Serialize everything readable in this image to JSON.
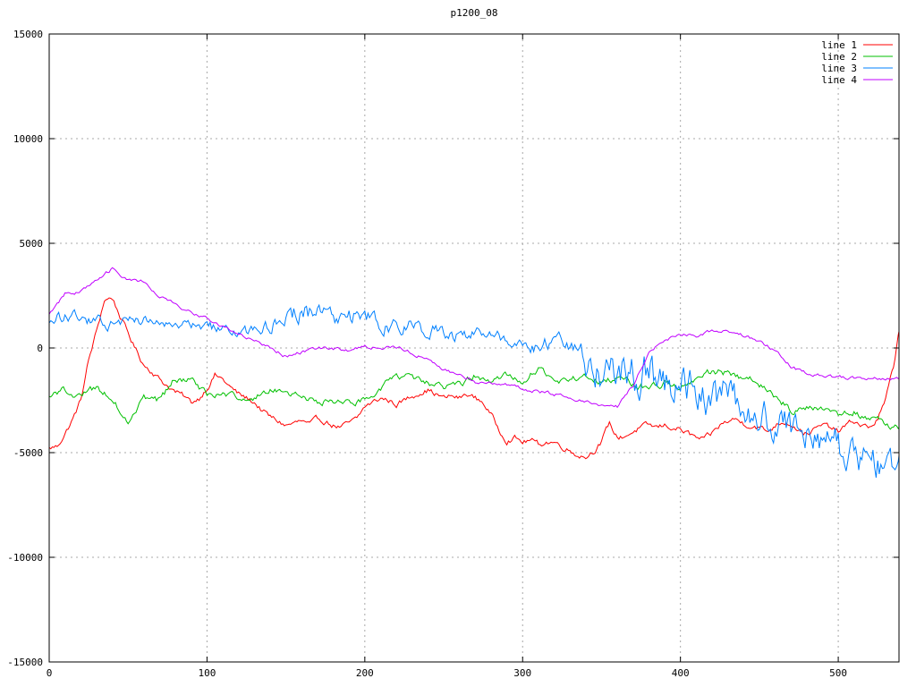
{
  "chart_data": {
    "type": "line",
    "title": "p1200_08",
    "xlabel": "",
    "ylabel": "",
    "xlim": [
      0,
      538.5
    ],
    "ylim": [
      -15000,
      15000
    ],
    "x_ticks": [
      0,
      100,
      200,
      300,
      400,
      500
    ],
    "y_ticks": [
      -15000,
      -10000,
      -5000,
      0,
      5000,
      10000,
      15000
    ],
    "grid": true,
    "grid_color": "#a8a8a8",
    "axis_color": "#000000",
    "background": "#ffffff",
    "legend_position": "top-right",
    "series": [
      {
        "name": "line 1",
        "color": "#ff0000",
        "x_start": 0,
        "x_step": 5,
        "noise": 180,
        "seed": 1234,
        "values": [
          -4800,
          -4700,
          -4100,
          -3400,
          -2500,
          -600,
          800,
          2300,
          2400,
          1500,
          700,
          -100,
          -800,
          -1100,
          -1500,
          -1800,
          -2100,
          -2300,
          -2600,
          -2400,
          -1900,
          -1300,
          -1500,
          -1900,
          -2200,
          -2400,
          -2600,
          -3000,
          -3300,
          -3500,
          -3700,
          -3600,
          -3500,
          -3700,
          -3400,
          -3500,
          -3700,
          -3800,
          -3600,
          -3400,
          -2800,
          -2600,
          -2400,
          -2500,
          -2700,
          -2500,
          -2300,
          -2100,
          -2000,
          -2200,
          -2400,
          -2300,
          -2400,
          -2200,
          -2400,
          -2600,
          -3200,
          -3900,
          -4400,
          -4300,
          -4500,
          -4400,
          -4600,
          -4500,
          -4500,
          -4700,
          -4900,
          -5100,
          -5200,
          -4900,
          -4500,
          -3600,
          -4300,
          -4200,
          -4000,
          -3800,
          -3700,
          -3800,
          -3700,
          -3800,
          -3900,
          -4100,
          -4300,
          -4400,
          -4100,
          -3700,
          -3500,
          -3400,
          -3600,
          -3700,
          -3800,
          -4000,
          -3700,
          -3500,
          -3600,
          -3900,
          -4100,
          -3900,
          -3700,
          -3800,
          -4000,
          -3700,
          -3500,
          -3700,
          -3800,
          -3400,
          -2500,
          -900,
          1500
        ]
      },
      {
        "name": "line 2",
        "color": "#00c000",
        "x_start": 0,
        "x_step": 10,
        "noise": 220,
        "seed": 5678,
        "values": [
          -2300,
          -2000,
          -2300,
          -1900,
          -2500,
          -3400,
          -2400,
          -2500,
          -1400,
          -1600,
          -2200,
          -2300,
          -2400,
          -2400,
          -1900,
          -2100,
          -2400,
          -2500,
          -2600,
          -2500,
          -2500,
          -1900,
          -1200,
          -1500,
          -1700,
          -1900,
          -1800,
          -1300,
          -1700,
          -1300,
          -1500,
          -1000,
          -1600,
          -1500,
          -1400,
          -1600,
          -1500,
          -1700,
          -1900,
          -1700,
          -1900,
          -1600,
          -1100,
          -1200,
          -1400,
          -1700,
          -2300,
          -3000,
          -2900,
          -2800,
          -3200,
          -3100,
          -3400,
          -3600,
          -3900
        ]
      },
      {
        "name": "line 3",
        "color": "#0080ff",
        "x_start": 0,
        "x_step": 10,
        "noise_profile": [
          350,
          400,
          350,
          350,
          350,
          350,
          350,
          350,
          350,
          350,
          350,
          350,
          350,
          350,
          500,
          600,
          650,
          650,
          600,
          600,
          550,
          500,
          500,
          450,
          450,
          450,
          400,
          400,
          400,
          400,
          450,
          500,
          500,
          900,
          1200,
          1400,
          1400,
          1400,
          1400,
          1300,
          1300,
          1300,
          1300,
          1200,
          1100,
          1100,
          1100,
          1100,
          1100,
          1100,
          1100,
          1100,
          1100,
          1000,
          900
        ],
        "seed": 9012,
        "values": [
          1100,
          1600,
          1400,
          1300,
          1100,
          1300,
          1300,
          1200,
          1000,
          1200,
          1000,
          900,
          700,
          800,
          900,
          1500,
          1800,
          1800,
          1600,
          1600,
          1400,
          1200,
          1100,
          1000,
          900,
          700,
          600,
          700,
          500,
          400,
          300,
          100,
          100,
          -200,
          -500,
          -900,
          -1200,
          -1300,
          -1500,
          -1700,
          -1800,
          -2000,
          -2200,
          -2500,
          -3000,
          -3400,
          -3600,
          -3900,
          -4200,
          -4500,
          -4800,
          -5200,
          -5700,
          -5800,
          -5400
        ]
      },
      {
        "name": "line 4",
        "color": "#c000ff",
        "x_start": 0,
        "x_step": 10,
        "noise": 110,
        "seed": 3456,
        "values": [
          1600,
          2600,
          2700,
          3300,
          3800,
          3250,
          3200,
          2400,
          2100,
          1700,
          1450,
          1050,
          600,
          400,
          0,
          -400,
          -200,
          0,
          -50,
          -100,
          100,
          0,
          0,
          -200,
          -600,
          -1000,
          -1300,
          -1600,
          -1700,
          -1750,
          -1900,
          -2100,
          -2200,
          -2400,
          -2550,
          -2700,
          -2800,
          -1800,
          -300,
          400,
          700,
          600,
          800,
          900,
          600,
          300,
          -100,
          -900,
          -1200,
          -1300,
          -1400,
          -1400,
          -1500,
          -1450,
          -1400
        ]
      }
    ]
  }
}
